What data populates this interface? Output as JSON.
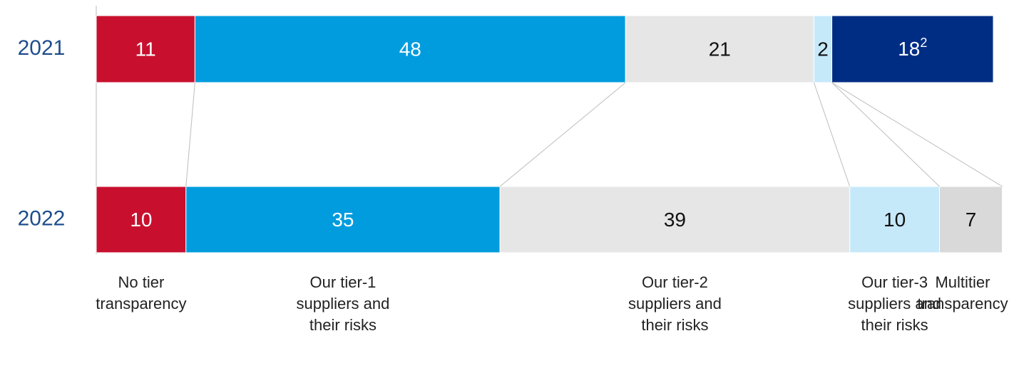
{
  "chart_data": {
    "type": "stacked_bar_horizontal",
    "categories": [
      "2021",
      "2022"
    ],
    "series": [
      {
        "name": "No tier transparency",
        "color": "#c8102e",
        "values": [
          11,
          10
        ]
      },
      {
        "name": "Our tier-1 suppliers and their risks",
        "color": "#009cde",
        "values": [
          48,
          35
        ]
      },
      {
        "name": "Our tier-2 suppliers and their risks",
        "color": "#e6e6e6",
        "values": [
          21,
          39
        ]
      },
      {
        "name": "Our tier-3 suppliers and their risks",
        "color": "#c6e9fa",
        "values": [
          2,
          10
        ]
      },
      {
        "name": "Multitier transparency",
        "colors": [
          "#002d84",
          "#d9d9d9"
        ],
        "values": [
          18,
          7
        ]
      }
    ],
    "annotations": [
      {
        "series": 4,
        "index": 0,
        "text": "2"
      }
    ],
    "xlim": [
      0,
      100
    ]
  }
}
